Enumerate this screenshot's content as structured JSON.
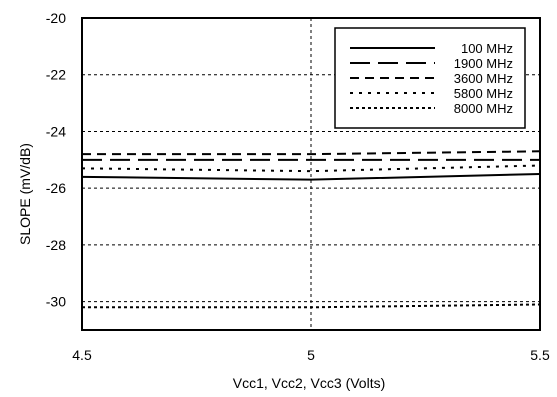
{
  "chart_data": {
    "type": "line",
    "title": "",
    "xlabel": "Vcc1, Vcc2, Vcc3 (Volts)",
    "ylabel": "SLOPE (mV/dB)",
    "xlim": [
      4.5,
      5.5
    ],
    "ylim": [
      -31,
      -20
    ],
    "xticks": [
      4.5,
      5,
      5.5
    ],
    "xtick_labels": [
      "4.5",
      "5",
      "5.5"
    ],
    "yticks": [
      -20,
      -22,
      -24,
      -26,
      -28,
      -30
    ],
    "ytick_labels": [
      "-20",
      "-22",
      "-24",
      "-26",
      "-28",
      "-30"
    ],
    "grid": true,
    "legend_position": "top-right",
    "series": [
      {
        "name": "100 MHz",
        "dash": "solid",
        "x": [
          4.5,
          5.0,
          5.5
        ],
        "values": [
          -25.6,
          -25.7,
          -25.5
        ]
      },
      {
        "name": "1900 MHz",
        "dash": "longdash",
        "x": [
          4.5,
          5.0,
          5.5
        ],
        "values": [
          -25.0,
          -25.0,
          -25.0
        ]
      },
      {
        "name": "3600 MHz",
        "dash": "dash",
        "x": [
          4.5,
          5.0,
          5.5
        ],
        "values": [
          -24.8,
          -24.8,
          -24.7
        ]
      },
      {
        "name": "5800 MHz",
        "dash": "dot",
        "x": [
          4.5,
          5.0,
          5.5
        ],
        "values": [
          -25.3,
          -25.4,
          -25.2
        ]
      },
      {
        "name": "8000 MHz",
        "dash": "dense",
        "x": [
          4.5,
          5.0,
          5.5
        ],
        "values": [
          -30.2,
          -30.2,
          -30.1
        ]
      }
    ]
  }
}
